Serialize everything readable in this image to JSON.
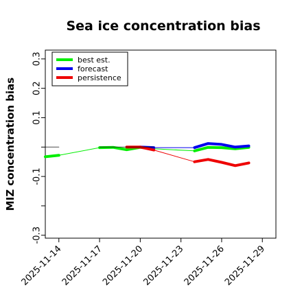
{
  "chart_data": {
    "type": "line",
    "title": "Sea ice concentration bias",
    "xlabel": "",
    "ylabel": "MIZ concentration bias",
    "ylim": [
      -0.31,
      0.33
    ],
    "xlim": [
      "2025-11-13",
      "2025-11-30"
    ],
    "yticks": [
      -0.3,
      -0.1,
      0.1,
      0.2,
      0.3
    ],
    "yticks_minor": [
      -0.2,
      0.0
    ],
    "xticks": [
      "2025-11-14",
      "2025-11-17",
      "2025-11-20",
      "2025-11-23",
      "2025-11-26",
      "2025-11-29"
    ],
    "highlight_xtick": "2025-11-20",
    "highlight_color": "#228b22",
    "legend_position": "upper-left",
    "grid": false,
    "series": [
      {
        "name": "best est.",
        "color": "#00ee00",
        "segments": [
          {
            "points": [
              [
                "2025-11-13",
                -0.033
              ],
              [
                "2025-11-14",
                -0.028
              ]
            ],
            "bold": true
          },
          {
            "points": [
              [
                "2025-11-14",
                -0.028
              ],
              [
                "2025-11-17",
                -0.002
              ]
            ],
            "bold": false
          },
          {
            "points": [
              [
                "2025-11-17",
                -0.002
              ],
              [
                "2025-11-18",
                -0.001
              ],
              [
                "2025-11-19",
                -0.009
              ],
              [
                "2025-11-20",
                -0.001
              ],
              [
                "2025-11-21",
                -0.006
              ]
            ],
            "bold": true
          },
          {
            "points": [
              [
                "2025-11-21",
                -0.006
              ],
              [
                "2025-11-24",
                -0.013
              ]
            ],
            "bold": false
          },
          {
            "points": [
              [
                "2025-11-24",
                -0.013
              ],
              [
                "2025-11-25",
                -0.001
              ],
              [
                "2025-11-26",
                -0.002
              ],
              [
                "2025-11-27",
                -0.006
              ],
              [
                "2025-11-28",
                -0.001
              ]
            ],
            "bold": true
          }
        ]
      },
      {
        "name": "forecast",
        "color": "#0000ee",
        "segments": [
          {
            "points": [
              [
                "2025-11-20",
                0.0
              ],
              [
                "2025-11-21",
                -0.002
              ]
            ],
            "bold": true
          },
          {
            "points": [
              [
                "2025-11-21",
                -0.002
              ],
              [
                "2025-11-24",
                -0.002
              ]
            ],
            "bold": false
          },
          {
            "points": [
              [
                "2025-11-24",
                -0.002
              ],
              [
                "2025-11-25",
                0.012
              ],
              [
                "2025-11-26",
                0.009
              ],
              [
                "2025-11-27",
                0.0
              ],
              [
                "2025-11-28",
                0.004
              ]
            ],
            "bold": true
          }
        ]
      },
      {
        "name": "persistence",
        "color": "#ee0000",
        "segments": [
          {
            "points": [
              [
                "2025-11-19",
                0.0
              ],
              [
                "2025-11-20",
                0.0
              ],
              [
                "2025-11-21",
                -0.01
              ]
            ],
            "bold": true
          },
          {
            "points": [
              [
                "2025-11-21",
                -0.01
              ],
              [
                "2025-11-24",
                -0.05
              ]
            ],
            "bold": false
          },
          {
            "points": [
              [
                "2025-11-24",
                -0.05
              ],
              [
                "2025-11-25",
                -0.042
              ],
              [
                "2025-11-26",
                -0.052
              ],
              [
                "2025-11-27",
                -0.063
              ],
              [
                "2025-11-28",
                -0.054
              ]
            ],
            "bold": true
          }
        ]
      },
      {
        "name": "",
        "color": "#000000",
        "segments": [
          {
            "points": [
              [
                "2025-11-13",
                0.0
              ],
              [
                "2025-11-14",
                0.0
              ]
            ],
            "bold": false
          },
          {
            "points": [
              [
                "2025-11-17",
                0.0
              ],
              [
                "2025-11-21",
                0.0
              ]
            ],
            "bold": false
          }
        ]
      }
    ]
  }
}
